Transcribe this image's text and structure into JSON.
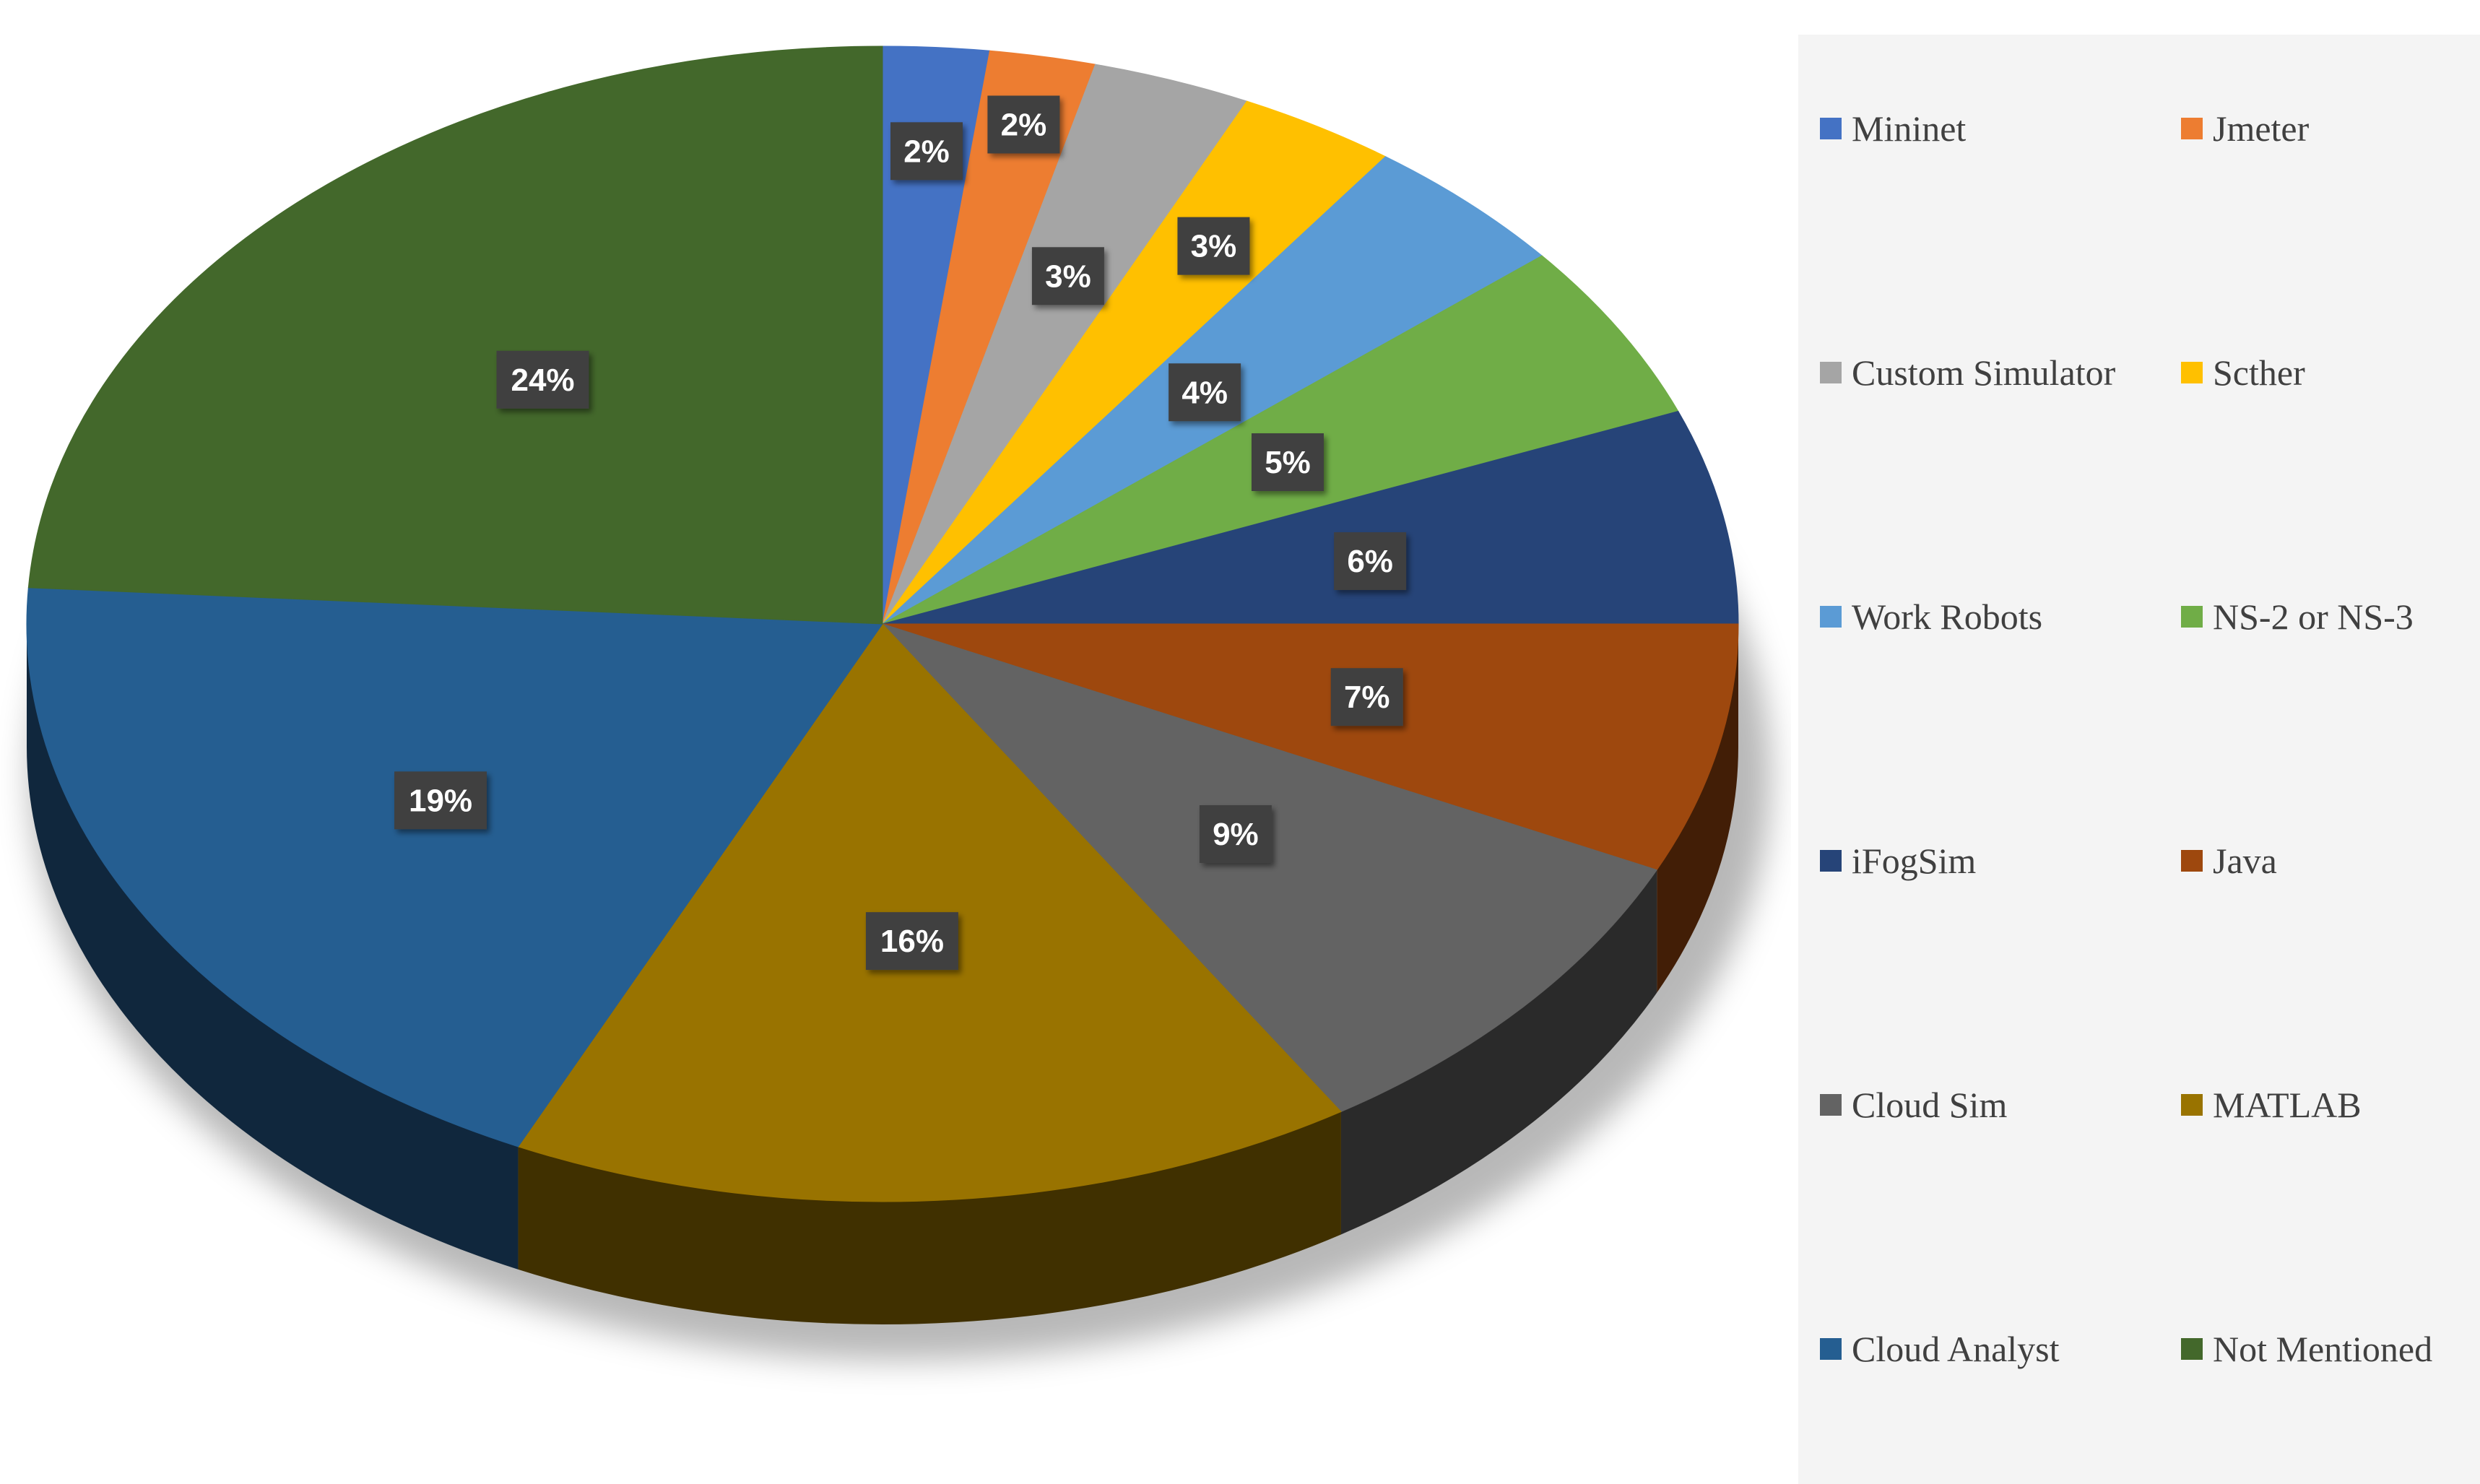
{
  "chart_data": {
    "type": "pie",
    "title": "",
    "slices": [
      {
        "label": "Mininet",
        "value": 2,
        "display": "2%",
        "color": "#4472C4"
      },
      {
        "label": "Jmeter",
        "value": 2,
        "display": "2%",
        "color": "#ED7D31"
      },
      {
        "label": "Custom Simulator",
        "value": 3,
        "display": "3%",
        "color": "#A5A5A5"
      },
      {
        "label": "Scther",
        "value": 3,
        "display": "3%",
        "color": "#FFC000"
      },
      {
        "label": "Work Robots",
        "value": 4,
        "display": "4%",
        "color": "#5B9BD5"
      },
      {
        "label": "NS-2 or NS-3",
        "value": 5,
        "display": "5%",
        "color": "#70AD47"
      },
      {
        "label": "iFogSim",
        "value": 6,
        "display": "6%",
        "color": "#264478"
      },
      {
        "label": "Java",
        "value": 7,
        "display": "7%",
        "color": "#9E480E"
      },
      {
        "label": "Cloud Sim",
        "value": 9,
        "display": "9%",
        "color": "#636363"
      },
      {
        "label": "MATLAB",
        "value": 16,
        "display": "16%",
        "color": "#997300"
      },
      {
        "label": "Cloud Analyst",
        "value": 19,
        "display": "19%",
        "color": "#255E91"
      },
      {
        "label": "Not Mentioned",
        "value": 24,
        "display": "24%",
        "color": "#43682B"
      }
    ],
    "start_angle_deg": 90,
    "direction": "clockwise",
    "style": "3d-pie",
    "data_labels": "percent, dark boxes",
    "legend_position": "right",
    "legend_columns": 2
  }
}
